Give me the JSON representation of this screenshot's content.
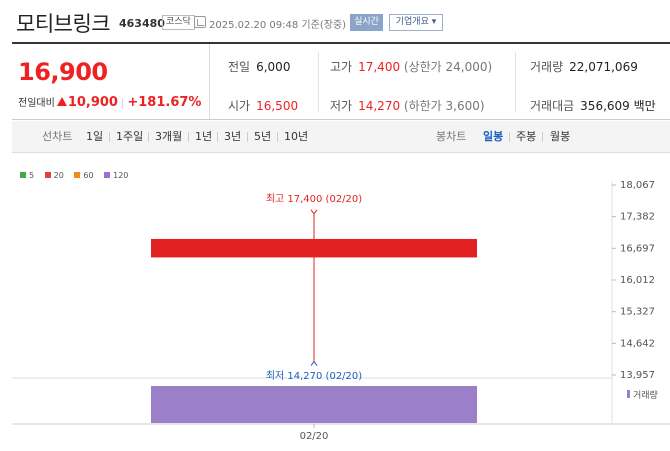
{
  "header": {
    "stock_name": "모티브링크",
    "stock_code": "463480",
    "market": "코스닥",
    "datetime": "2025.02.20 09:48 기준(장중)",
    "realtime_label": "실시간",
    "company_overview_label": "기업개요 ▾"
  },
  "price": {
    "current": "16,900",
    "change_label": "전일대비",
    "change_value": "10,900",
    "change_pct": "+181.67%"
  },
  "info": {
    "prev_close_label": "전일",
    "prev_close": "6,000",
    "high_label": "고가",
    "high": "17,400",
    "upper_limit": "(상한가 24,000)",
    "volume_label": "거래량",
    "volume": "22,071,069",
    "open_label": "시가",
    "open": "16,500",
    "low_label": "저가",
    "low": "14,270",
    "lower_limit": "(하한가 3,600)",
    "trade_value_label": "거래대금",
    "trade_value": "356,609 백만"
  },
  "tabs": {
    "line_chart_label": "선차트",
    "periods": [
      "1일",
      "1주일",
      "3개월",
      "1년",
      "3년",
      "5년",
      "10년"
    ],
    "candle_chart_label": "봉차트",
    "candle_periods": [
      "일봉",
      "주봉",
      "월봉"
    ],
    "active_candle": "일봉"
  },
  "colors": {
    "up": "#e22222",
    "down": "#1b5fc1",
    "volume": "#9b7fc9",
    "ma5": "#44aa44",
    "ma20": "#e04040",
    "ma60": "#f08a20",
    "ma120": "#9b6fd0"
  },
  "chart_data": {
    "type": "bar",
    "x": [
      "02/20"
    ],
    "legend": [
      "5",
      "20",
      "60",
      "120"
    ],
    "candles": [
      {
        "date": "02/20",
        "open": 16500,
        "high": 17400,
        "low": 14270,
        "close": 16900
      }
    ],
    "y_ticks": [
      "18,067",
      "17,382",
      "16,697",
      "16,012",
      "15,327",
      "14,642",
      "13,957"
    ],
    "ylim": [
      13957,
      18067
    ],
    "high_annotation": "최고 17,400 (02/20)",
    "low_annotation": "최저 14,270 (02/20)",
    "volume_label": "거래량",
    "volume_values": [
      22071069
    ]
  }
}
